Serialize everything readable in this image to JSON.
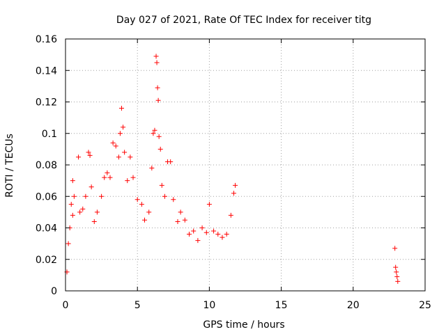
{
  "chart_data": {
    "type": "scatter",
    "title": "Day 027 of 2021, Rate Of TEC Index for receiver titg",
    "xlabel": "GPS time / hours",
    "ylabel": "ROTI / TECUs",
    "xlim": [
      0,
      25
    ],
    "ylim": [
      0,
      0.16
    ],
    "xticks": [
      0,
      5,
      10,
      15,
      20,
      25
    ],
    "xtick_labels": [
      "0",
      "5",
      "10",
      "15",
      "20",
      "25"
    ],
    "yticks": [
      0,
      0.02,
      0.04,
      0.06,
      0.08,
      0.1,
      0.12,
      0.14,
      0.16
    ],
    "ytick_labels": [
      "0",
      "0.02",
      "0.04",
      "0.06",
      "0.08",
      "0.1",
      "0.12",
      "0.14",
      "0.16"
    ],
    "grid": true,
    "marker": "+",
    "marker_color": "#ff0000",
    "series": [
      {
        "name": "",
        "points": [
          [
            0.1,
            0.012
          ],
          [
            0.2,
            0.03
          ],
          [
            0.3,
            0.04
          ],
          [
            0.4,
            0.055
          ],
          [
            0.5,
            0.07
          ],
          [
            0.6,
            0.06
          ],
          [
            0.5,
            0.048
          ],
          [
            0.9,
            0.085
          ],
          [
            1.0,
            0.05
          ],
          [
            1.2,
            0.052
          ],
          [
            1.4,
            0.06
          ],
          [
            1.6,
            0.088
          ],
          [
            1.7,
            0.086
          ],
          [
            1.8,
            0.066
          ],
          [
            2.0,
            0.044
          ],
          [
            2.2,
            0.05
          ],
          [
            2.5,
            0.06
          ],
          [
            2.7,
            0.072
          ],
          [
            2.9,
            0.075
          ],
          [
            3.1,
            0.072
          ],
          [
            3.3,
            0.094
          ],
          [
            3.5,
            0.092
          ],
          [
            3.7,
            0.085
          ],
          [
            3.8,
            0.1
          ],
          [
            3.9,
            0.116
          ],
          [
            4.0,
            0.104
          ],
          [
            4.1,
            0.088
          ],
          [
            4.3,
            0.07
          ],
          [
            4.5,
            0.085
          ],
          [
            4.7,
            0.072
          ],
          [
            5.0,
            0.058
          ],
          [
            5.3,
            0.055
          ],
          [
            5.5,
            0.045
          ],
          [
            5.8,
            0.05
          ],
          [
            6.0,
            0.078
          ],
          [
            6.1,
            0.1
          ],
          [
            6.2,
            0.102
          ],
          [
            6.3,
            0.149
          ],
          [
            6.35,
            0.145
          ],
          [
            6.4,
            0.129
          ],
          [
            6.45,
            0.121
          ],
          [
            6.5,
            0.098
          ],
          [
            6.6,
            0.09
          ],
          [
            6.7,
            0.067
          ],
          [
            6.9,
            0.06
          ],
          [
            7.1,
            0.082
          ],
          [
            7.3,
            0.082
          ],
          [
            7.5,
            0.058
          ],
          [
            7.8,
            0.044
          ],
          [
            8.0,
            0.05
          ],
          [
            8.3,
            0.045
          ],
          [
            8.6,
            0.036
          ],
          [
            8.9,
            0.038
          ],
          [
            9.2,
            0.032
          ],
          [
            9.5,
            0.04
          ],
          [
            9.8,
            0.037
          ],
          [
            10.0,
            0.055
          ],
          [
            10.3,
            0.038
          ],
          [
            10.6,
            0.036
          ],
          [
            10.9,
            0.034
          ],
          [
            11.2,
            0.036
          ],
          [
            11.5,
            0.048
          ],
          [
            11.7,
            0.062
          ],
          [
            11.8,
            0.067
          ],
          [
            22.9,
            0.027
          ],
          [
            22.95,
            0.015
          ],
          [
            23.0,
            0.012
          ],
          [
            23.05,
            0.009
          ],
          [
            23.1,
            0.006
          ]
        ]
      }
    ]
  }
}
